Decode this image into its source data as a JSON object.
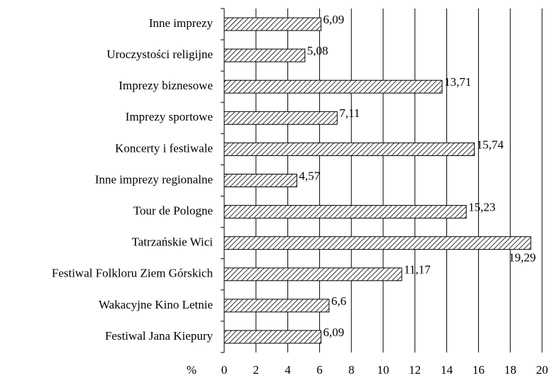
{
  "chart_data": {
    "type": "bar",
    "orientation": "horizontal",
    "xlabel": "%",
    "categories": [
      "Inne imprezy",
      "Uroczystości religijne",
      "Imprezy biznesowe",
      "Imprezy sportowe",
      "Koncerty i festiwale",
      "Inne imprezy regionalne",
      "Tour de Pologne",
      "Tatrzańskie Wici",
      "Festiwal Folkloru Ziem Górskich",
      "Wakacyjne Kino Letnie",
      "Festiwal Jana Kiepury"
    ],
    "values": [
      6.09,
      5.08,
      13.71,
      7.11,
      15.74,
      4.57,
      15.23,
      19.29,
      11.17,
      6.6,
      6.09
    ],
    "value_labels": [
      "6,09",
      "5,08",
      "13,71",
      "7,11",
      "15,74",
      "4,57",
      "15,23",
      "19,29",
      "11,17",
      "6,6",
      "6,09"
    ],
    "color": "#000000",
    "xlim": [
      0,
      20
    ],
    "xticks": [
      0,
      2,
      4,
      6,
      8,
      10,
      12,
      14,
      16,
      18,
      20
    ],
    "grid": true
  }
}
